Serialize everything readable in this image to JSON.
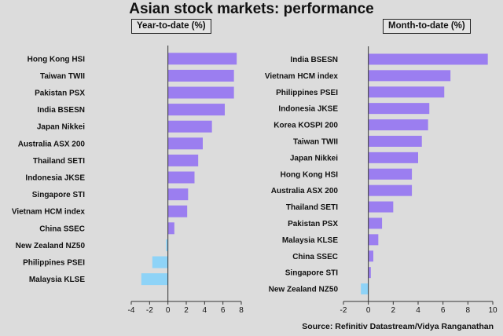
{
  "title": "Asian stock markets: performance",
  "source": "Source: Refinitiv Datastream/Vidya Ranganathan",
  "colors": {
    "positive": "#9b7ef0",
    "negative": "#8ed3f7"
  },
  "chart_data": [
    {
      "type": "bar",
      "orientation": "horizontal",
      "title": "Year-to-date (%)",
      "categories": [
        "Hong Kong HSI",
        "Taiwan TWII",
        "Pakistan PSX",
        "India BSESN",
        "Japan Nikkei",
        "Australia ASX 200",
        "Thailand SETI",
        "Indonesia JKSE",
        "Singapore STI",
        "Vietnam HCM index",
        "China SSEC",
        "New Zealand NZ50",
        "Philippines PSEI",
        "Malaysia KLSE"
      ],
      "values": [
        7.5,
        7.2,
        7.2,
        6.2,
        4.8,
        3.8,
        3.3,
        2.9,
        2.2,
        2.1,
        0.7,
        -0.2,
        -1.7,
        -2.9
      ],
      "xlim": [
        -4,
        8
      ],
      "xticks": [
        "-4",
        "-2",
        "0",
        "2",
        "4",
        "6",
        "8"
      ],
      "grid": false
    },
    {
      "type": "bar",
      "orientation": "horizontal",
      "title": "Month-to-date (%)",
      "categories": [
        "India BSESN",
        "Vietnam HCM index",
        "Philippines PSEI",
        "Indonesia JKSE",
        "Korea KOSPI 200",
        "Taiwan TWII",
        "Japan Nikkei",
        "Hong Kong HSI",
        "Australia ASX 200",
        "Thailand SETI",
        "Pakistan PSX",
        "Malaysia KLSE",
        "China SSEC",
        "Singapore STI",
        "New Zealand NZ50"
      ],
      "values": [
        9.6,
        6.6,
        6.1,
        4.9,
        4.8,
        4.3,
        4.0,
        3.5,
        3.5,
        2.0,
        1.1,
        0.8,
        0.4,
        0.2,
        -0.6
      ],
      "xlim": [
        -2,
        10
      ],
      "xticks": [
        "-2",
        "0",
        "2",
        "4",
        "6",
        "8",
        "10"
      ],
      "grid": false
    }
  ]
}
